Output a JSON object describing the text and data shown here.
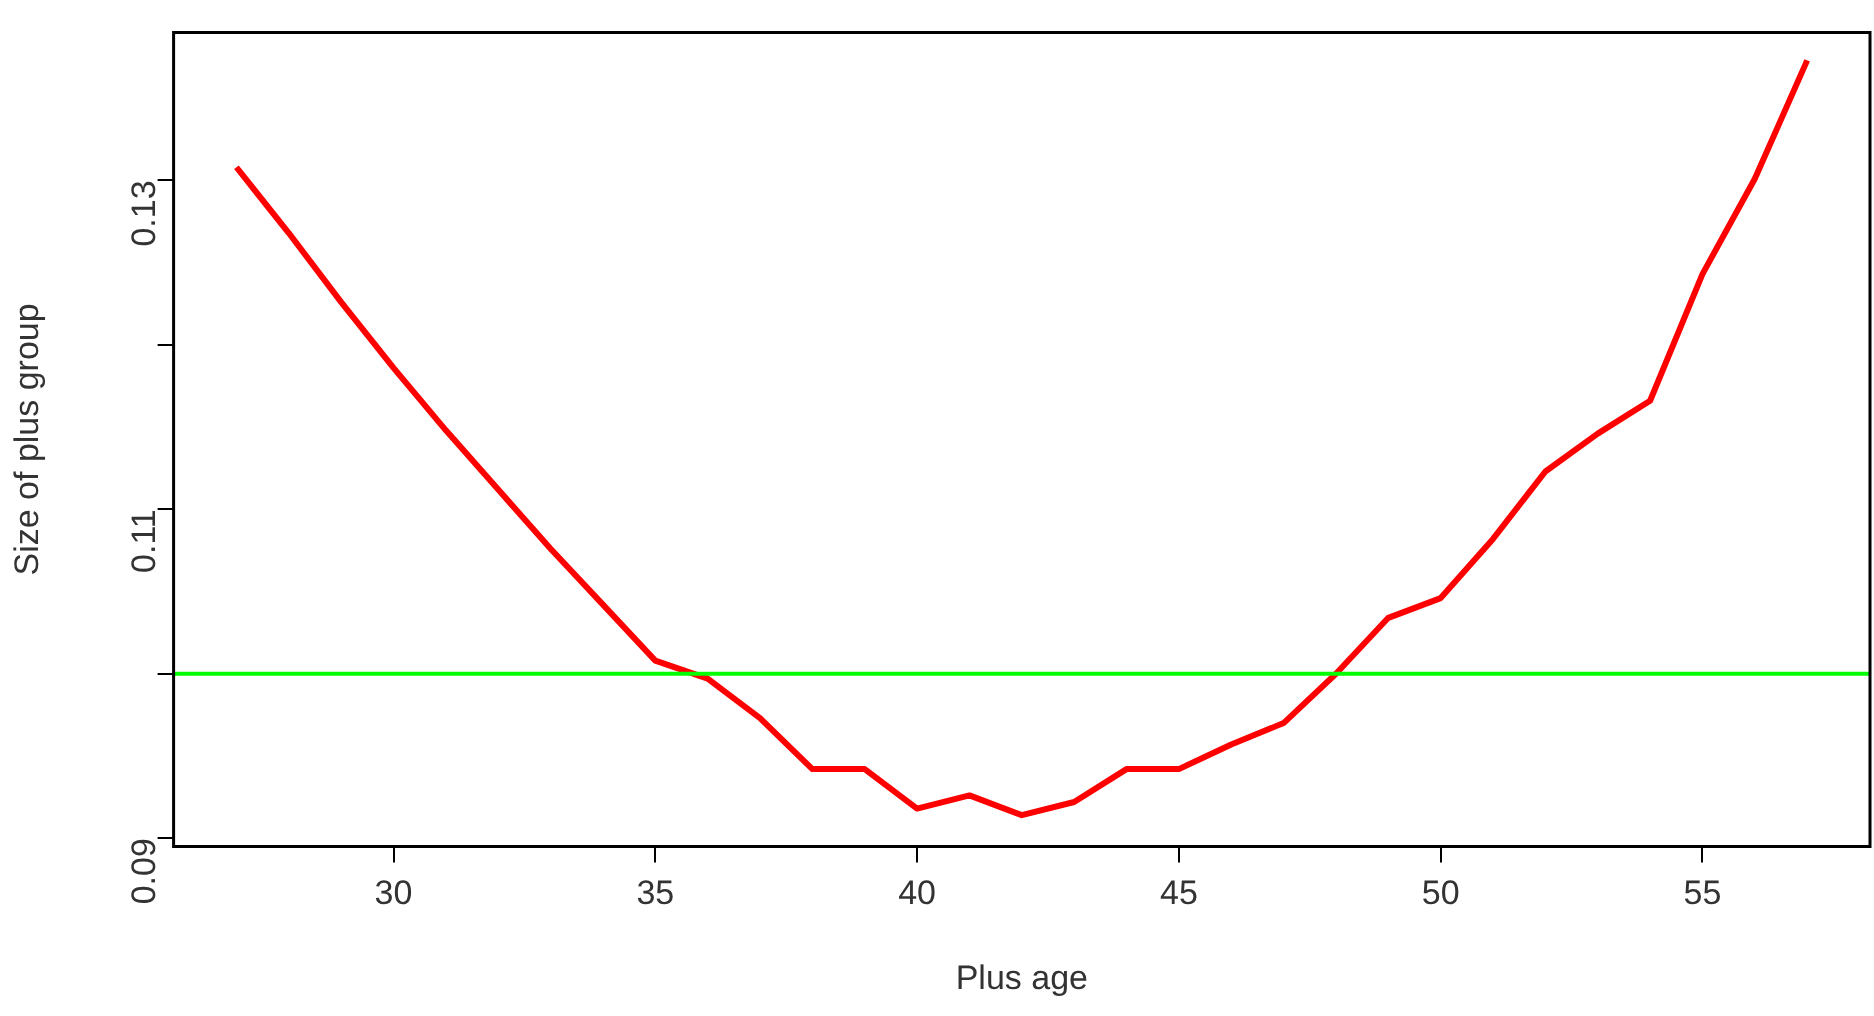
{
  "chart_data": {
    "type": "line",
    "xlabel": "Plus age",
    "ylabel": "Size of plus group",
    "x": [
      27,
      28,
      29,
      30,
      31,
      32,
      33,
      34,
      35,
      36,
      37,
      38,
      39,
      40,
      41,
      42,
      43,
      44,
      45,
      46,
      47,
      48,
      49,
      50,
      51,
      52,
      53,
      54,
      55,
      56,
      57
    ],
    "series": [
      {
        "color": "#ff0000",
        "values": [
          0.1308,
          0.1268,
          0.1226,
          0.1186,
          0.1148,
          0.1112,
          0.1076,
          0.1042,
          0.1008,
          0.0997,
          0.0973,
          0.0942,
          0.0942,
          0.0918,
          0.0926,
          0.0914,
          0.0922,
          0.0942,
          0.0942,
          0.0957,
          0.097,
          0.1,
          0.1034,
          0.1046,
          0.1082,
          0.1123,
          0.1146,
          0.1166,
          0.1243,
          0.1301,
          0.1373
        ]
      }
    ],
    "xlim": [
      25.8,
      58.2
    ],
    "xticks": [
      30,
      35,
      40,
      45,
      50,
      55
    ],
    "ylim": [
      0.0895,
      0.139
    ],
    "yticks": [
      0.09,
      {
        "value": 0.1,
        "label": null
      },
      0.11,
      {
        "value": 0.12,
        "label": null
      },
      0.13
    ],
    "ref_lines": [
      {
        "axis": "y",
        "value": 0.1,
        "color": "#00ff00"
      }
    ],
    "grid": false,
    "legend": false,
    "marker": "none",
    "line_style": "solid"
  }
}
